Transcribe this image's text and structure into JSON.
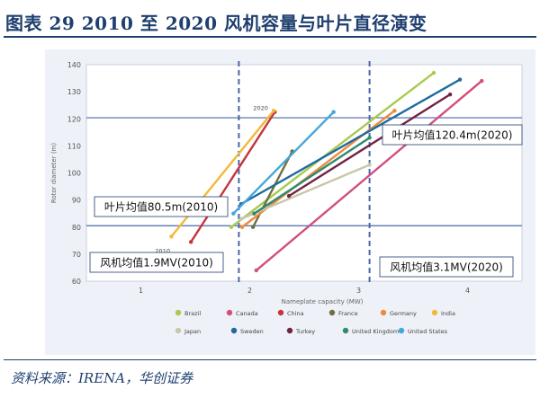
{
  "header": {
    "title": "图表 29   2010 至 2020 风机容量与叶片直径演变"
  },
  "footer": {
    "source": "资料来源：IRENA，华创证券"
  },
  "annotations": {
    "label_2020": "2020",
    "label_2010": "2010",
    "avg_diam_2020": "叶片均值120.4m(2020)",
    "avg_diam_2010": "叶片均值80.5m(2010)",
    "avg_cap_2010": "风机均值1.9MV(2010)",
    "avg_cap_2020": "风机均值3.1MV(2020)"
  },
  "colors": {
    "accent": "#1f3f6e",
    "plot_bg": "#eef1f7",
    "ref_line": "#4a66a8"
  },
  "chart_data": {
    "type": "line",
    "xlabel": "Nameplate capacity (MW)",
    "ylabel": "Rotor diameter (m)",
    "xlim": [
      0.5,
      4.5
    ],
    "ylim": [
      60,
      140
    ],
    "xticks": [
      1,
      2,
      3,
      4
    ],
    "yticks": [
      60,
      70,
      80,
      90,
      100,
      110,
      120,
      130,
      140
    ],
    "reference_lines": {
      "horizontal": [
        {
          "y": 120.4,
          "label": "叶片均值120.4m(2020)"
        },
        {
          "y": 80.5,
          "label": "叶片均值80.5m(2010)"
        }
      ],
      "vertical": [
        {
          "x": 1.9,
          "label": "风机均值1.9MV(2010)"
        },
        {
          "x": 3.1,
          "label": "风机均值3.1MV(2020)"
        }
      ]
    },
    "series": [
      {
        "name": "Brazil",
        "color": "#a9c94f",
        "points": [
          [
            1.83,
            80
          ],
          [
            3.69,
            137
          ]
        ]
      },
      {
        "name": "Canada",
        "color": "#d14f7e",
        "points": [
          [
            2.06,
            64
          ],
          [
            4.13,
            134
          ]
        ]
      },
      {
        "name": "China",
        "color": "#c6353e",
        "points": [
          [
            1.46,
            74.5
          ],
          [
            2.23,
            122.5
          ]
        ]
      },
      {
        "name": "France",
        "color": "#6f6f3f",
        "points": [
          [
            2.03,
            80
          ],
          [
            2.39,
            108
          ]
        ]
      },
      {
        "name": "Germany",
        "color": "#f08a3c",
        "points": [
          [
            1.93,
            80
          ],
          [
            3.33,
            123
          ]
        ]
      },
      {
        "name": "India",
        "color": "#f3b93a",
        "points": [
          [
            1.28,
            76.5
          ],
          [
            2.22,
            123
          ]
        ]
      },
      {
        "name": "Japan",
        "color": "#c8c7ad",
        "points": [
          [
            1.92,
            83
          ],
          [
            3.1,
            103
          ]
        ]
      },
      {
        "name": "Sweden",
        "color": "#1e6aa0",
        "points": [
          [
            1.92,
            88.5
          ],
          [
            3.93,
            134.5
          ]
        ]
      },
      {
        "name": "Turkey",
        "color": "#722346",
        "points": [
          [
            2.36,
            91.5
          ],
          [
            3.84,
            129
          ]
        ]
      },
      {
        "name": "United Kingdom",
        "color": "#2f8a6e",
        "points": [
          [
            2.04,
            85
          ],
          [
            3.1,
            113
          ]
        ]
      },
      {
        "name": "United States",
        "color": "#44a7dc",
        "points": [
          [
            1.85,
            85
          ],
          [
            2.77,
            122.5
          ]
        ]
      }
    ]
  }
}
